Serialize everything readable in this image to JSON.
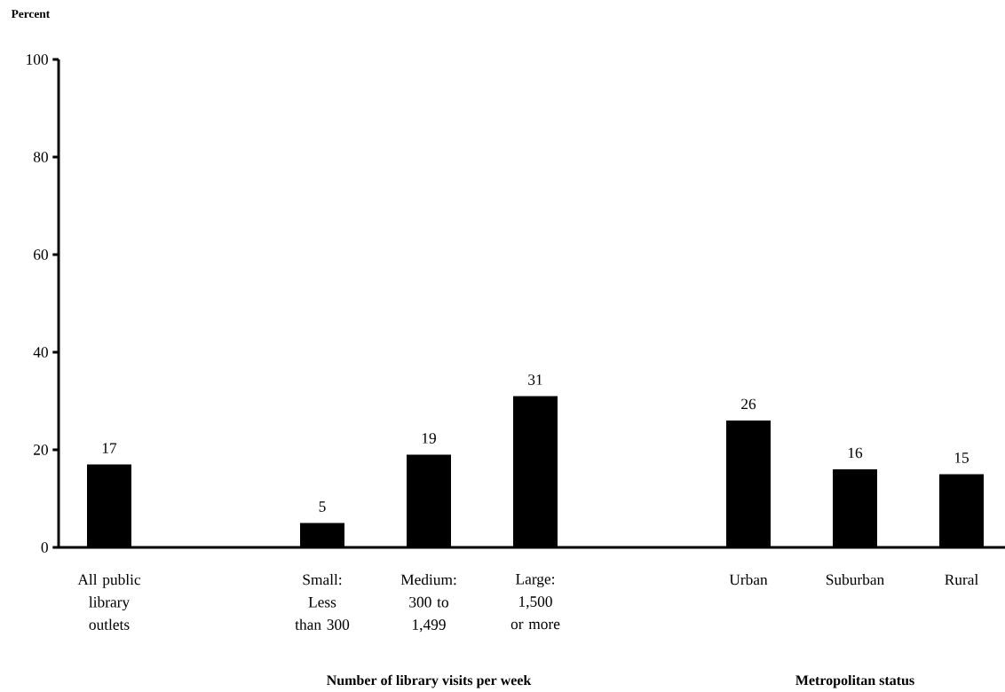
{
  "chart_data": {
    "type": "bar",
    "ylabel": "Percent",
    "categories": [
      "All public library outlets",
      null,
      "Small: Less than 300",
      "Medium: 300 to 1,499",
      "Large: 1,500 or more",
      null,
      "Urban",
      "Suburban",
      "Rural"
    ],
    "values": [
      17,
      null,
      5,
      19,
      31,
      null,
      26,
      16,
      15
    ],
    "color": "#000000",
    "ylim": [
      0,
      100
    ],
    "yticks": [
      0,
      20,
      40,
      60,
      80,
      100
    ],
    "data_labels": true,
    "annotations": [
      "Number of library visits per week",
      "Metropolitan status"
    ]
  }
}
